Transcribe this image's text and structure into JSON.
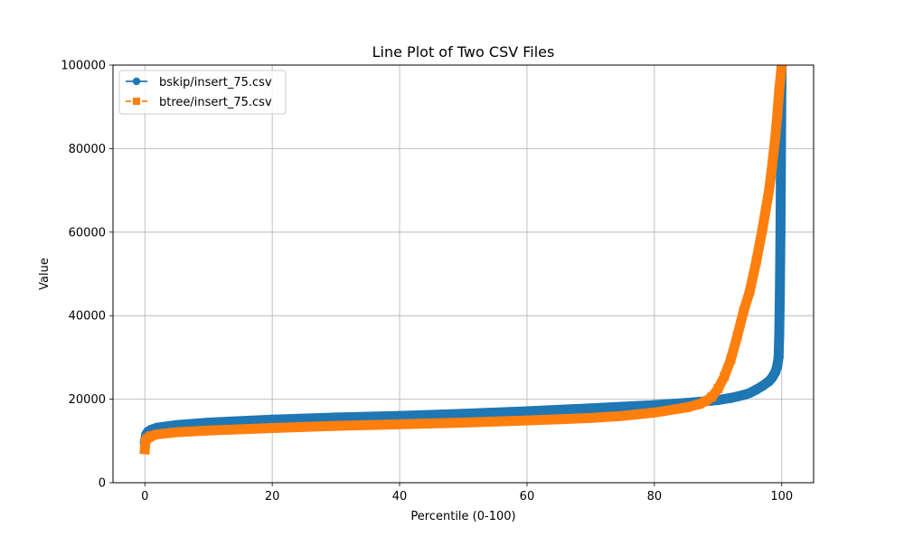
{
  "chart_data": {
    "type": "line",
    "title": "Line Plot of Two CSV Files",
    "xlabel": "Percentile (0-100)",
    "ylabel": "Value",
    "xlim": [
      -5,
      105
    ],
    "ylim": [
      0,
      100000
    ],
    "xticks": [
      0,
      20,
      40,
      60,
      80,
      100
    ],
    "yticks": [
      0,
      20000,
      40000,
      60000,
      80000,
      100000
    ],
    "x_tick_labels": [
      "0",
      "20",
      "40",
      "60",
      "80",
      "100"
    ],
    "y_tick_labels": [
      "0",
      "20000",
      "40000",
      "60000",
      "80000",
      "100000"
    ],
    "grid": true,
    "legend_position": "top-left",
    "series": [
      {
        "name": "bskip/insert_75.csv",
        "color": "#1f77b4",
        "marker": "circle",
        "linestyle": "solid",
        "x": [
          0,
          0.2,
          0.5,
          1,
          2,
          5,
          10,
          20,
          30,
          40,
          50,
          60,
          70,
          80,
          85,
          88,
          90,
          92,
          94,
          95,
          96,
          97,
          98,
          98.5,
          99,
          99.3,
          99.5,
          99.6,
          99.7,
          99.8,
          99.85,
          99.9,
          99.95,
          100
        ],
        "y": [
          9500,
          11500,
          12200,
          12700,
          13200,
          13800,
          14400,
          15100,
          15600,
          16000,
          16500,
          17100,
          17800,
          18600,
          19100,
          19500,
          19800,
          20300,
          21000,
          21500,
          22300,
          23200,
          24300,
          25200,
          26500,
          28000,
          30000,
          35000,
          45000,
          60000,
          72000,
          85000,
          95000,
          100000
        ]
      },
      {
        "name": "btree/insert_75.csv",
        "color": "#ff7f0e",
        "marker": "square",
        "linestyle": "dashed",
        "x": [
          0,
          0.1,
          0.3,
          0.7,
          1,
          2,
          5,
          10,
          20,
          30,
          40,
          50,
          60,
          70,
          75,
          80,
          85,
          87,
          88,
          89,
          90,
          91,
          92,
          93,
          94,
          95,
          96,
          97,
          98,
          98.5,
          99,
          99.3,
          99.6,
          100
        ],
        "y": [
          8000,
          9800,
          10500,
          10900,
          11200,
          11600,
          12100,
          12500,
          13100,
          13600,
          14000,
          14400,
          14900,
          15500,
          16000,
          16800,
          18000,
          18800,
          19500,
          20500,
          22500,
          25500,
          29500,
          35000,
          41000,
          46000,
          53000,
          61000,
          70000,
          76000,
          83000,
          88000,
          94000,
          100000
        ]
      }
    ]
  }
}
